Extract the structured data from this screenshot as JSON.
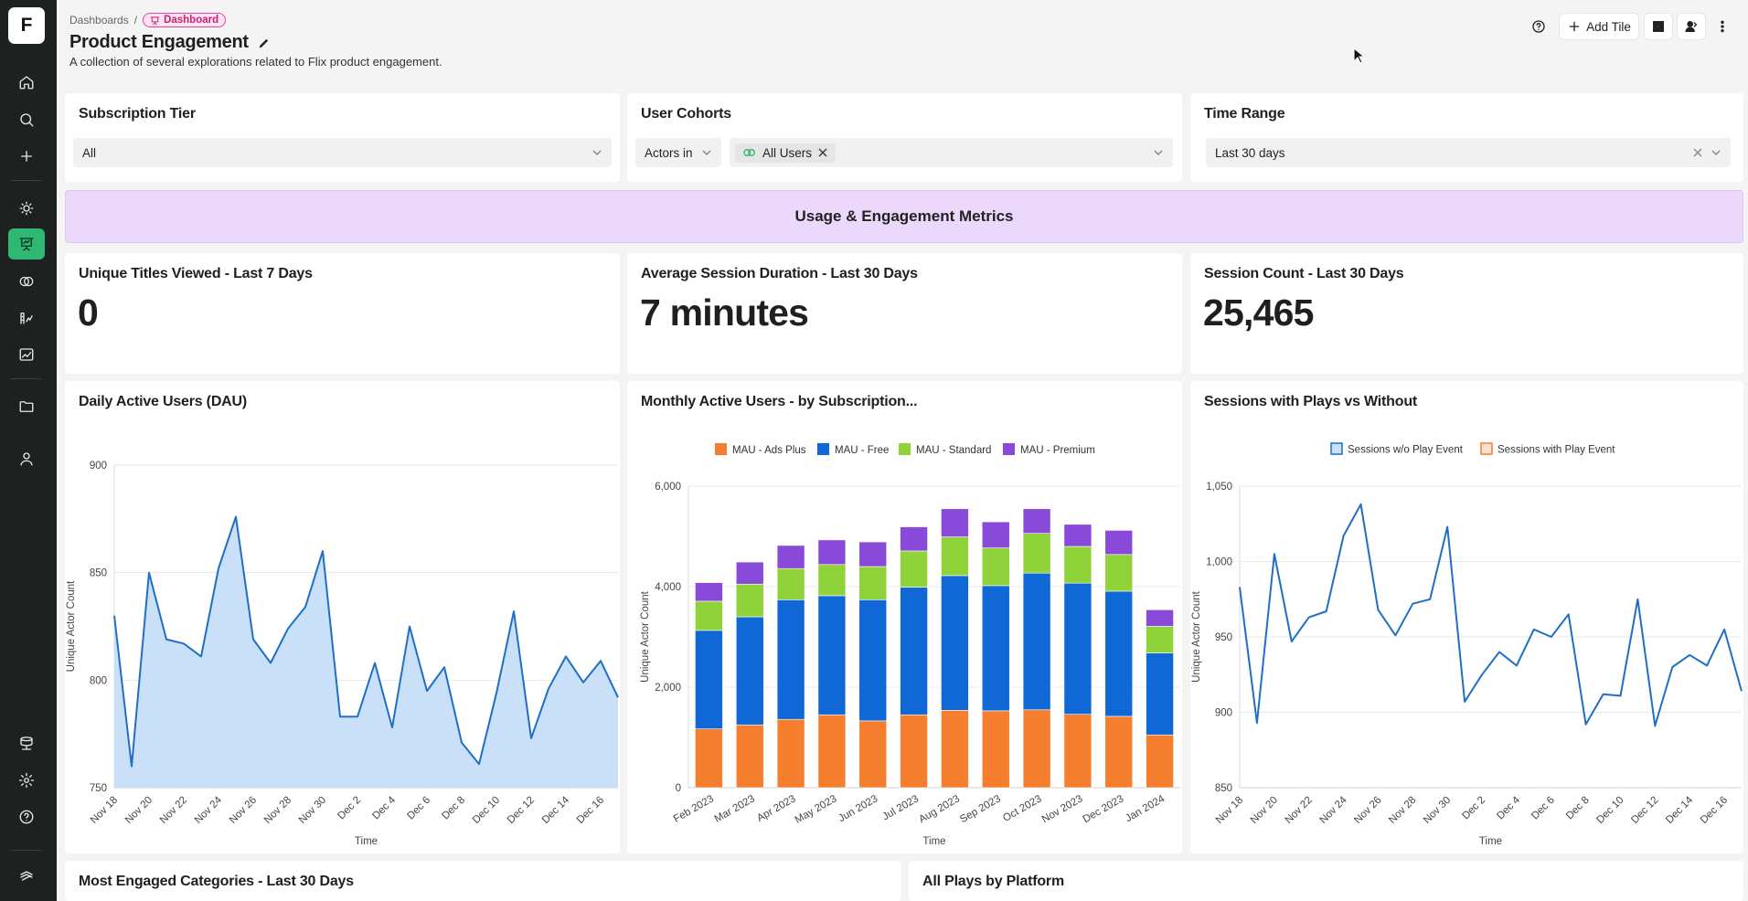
{
  "sidebar": {
    "logo": "F",
    "items": [
      {
        "name": "home-icon"
      },
      {
        "name": "search-icon"
      },
      {
        "name": "plus-icon"
      },
      {
        "name": "lightbulb-icon"
      },
      {
        "name": "dashboard-icon",
        "active": true
      },
      {
        "name": "cohorts-icon"
      },
      {
        "name": "metrics-icon"
      },
      {
        "name": "chart-icon"
      },
      {
        "name": "folder-icon"
      },
      {
        "name": "user-icon"
      },
      {
        "name": "data-icon"
      },
      {
        "name": "settings-icon"
      },
      {
        "name": "help-icon"
      },
      {
        "name": "brand-icon"
      }
    ]
  },
  "header": {
    "breadcrumb_parent": "Dashboards",
    "breadcrumb_sep": "/",
    "badge": "Dashboard",
    "title": "Product Engagement",
    "description": "A collection of several explorations related to Flix product engagement.",
    "add_tile": "Add Tile"
  },
  "filters": {
    "subscription": {
      "title": "Subscription Tier",
      "value": "All"
    },
    "cohorts": {
      "title": "User Cohorts",
      "mode": "Actors in",
      "chip": "All Users"
    },
    "time": {
      "title": "Time Range",
      "value": "Last 30 days"
    }
  },
  "section_banner": "Usage & Engagement Metrics",
  "kpis": [
    {
      "title": "Unique Titles Viewed - Last 7 Days",
      "value": "0"
    },
    {
      "title": "Average Session Duration - Last 30 Days",
      "value": "7 minutes"
    },
    {
      "title": "Session Count - Last 30 Days",
      "value": "25,465"
    }
  ],
  "bottom_panels": {
    "left": "Most Engaged Categories - Last 30 Days",
    "right": "All Plays by Platform"
  },
  "colors": {
    "accent": "#2fb872",
    "line": "#1f6fc5",
    "area": "#c9e0f8",
    "ads_plus": "#f57f2f",
    "free": "#0f68d6",
    "standard": "#8fd23a",
    "premium": "#8a4ad9"
  },
  "chart_data": [
    {
      "type": "area",
      "title": "Daily Active Users (DAU)",
      "xlabel": "Time",
      "ylabel": "Unique Actor Count",
      "ylim": [
        750,
        900
      ],
      "yticks": [
        "750",
        "800",
        "850",
        "900"
      ],
      "xtick_labels": [
        "Nov 18",
        "Nov 20",
        "Nov 22",
        "Nov 24",
        "Nov 26",
        "Nov 28",
        "Nov 30",
        "Dec 2",
        "Dec 4",
        "Dec 6",
        "Dec 8",
        "Dec 10",
        "Dec 12",
        "Dec 14",
        "Dec 16"
      ],
      "values": [
        830,
        760,
        850,
        819,
        817,
        811,
        852,
        876,
        819,
        808,
        824,
        834,
        860,
        783,
        783,
        808,
        778,
        825,
        795,
        806,
        771,
        761,
        794,
        832,
        773,
        796,
        811,
        799,
        809,
        792
      ]
    },
    {
      "type": "bar",
      "stacked": true,
      "title": "Monthly Active Users - by Subscription...",
      "xlabel": "Time",
      "ylabel": "Unique Actor Count",
      "ylim": [
        0,
        6000
      ],
      "yticks": [
        "0",
        "2,000",
        "4,000",
        "6,000"
      ],
      "categories": [
        "Feb 2023",
        "Mar 2023",
        "Apr 2023",
        "May 2023",
        "Jun 2023",
        "Jul 2023",
        "Aug 2023",
        "Sep 2023",
        "Oct 2023",
        "Nov 2023",
        "Dec 2023",
        "Jan 2024"
      ],
      "series": [
        {
          "name": "MAU - Ads Plus",
          "values": [
            1170,
            1250,
            1360,
            1450,
            1330,
            1450,
            1540,
            1530,
            1550,
            1460,
            1420,
            1050
          ]
        },
        {
          "name": "MAU - Free",
          "values": [
            1960,
            2150,
            2380,
            2370,
            2410,
            2540,
            2680,
            2490,
            2720,
            2610,
            2490,
            1630
          ]
        },
        {
          "name": "MAU - Standard",
          "values": [
            580,
            650,
            620,
            620,
            660,
            720,
            770,
            750,
            790,
            730,
            730,
            530
          ]
        },
        {
          "name": "MAU - Premium",
          "values": [
            370,
            440,
            460,
            490,
            490,
            480,
            560,
            520,
            490,
            440,
            480,
            330
          ]
        }
      ]
    },
    {
      "type": "line",
      "title": "Sessions with Plays vs Without",
      "xlabel": "Time",
      "ylabel": "Unique Actor Count",
      "ylim": [
        850,
        1050
      ],
      "yticks": [
        "850",
        "900",
        "950",
        "1,000",
        "1,050"
      ],
      "legend": [
        "Sessions w/o Play Event",
        "Sessions with Play Event"
      ],
      "xtick_labels": [
        "Nov 18",
        "Nov 20",
        "Nov 22",
        "Nov 24",
        "Nov 26",
        "Nov 28",
        "Nov 30",
        "Dec 2",
        "Dec 4",
        "Dec 6",
        "Dec 8",
        "Dec 10",
        "Dec 12",
        "Dec 14",
        "Dec 16"
      ],
      "values": [
        983,
        893,
        1005,
        947,
        963,
        967,
        1017,
        1038,
        968,
        951,
        972,
        975,
        1023,
        907,
        925,
        940,
        931,
        955,
        950,
        965,
        892,
        912,
        911,
        975,
        891,
        930,
        938,
        931,
        955,
        914
      ]
    }
  ]
}
